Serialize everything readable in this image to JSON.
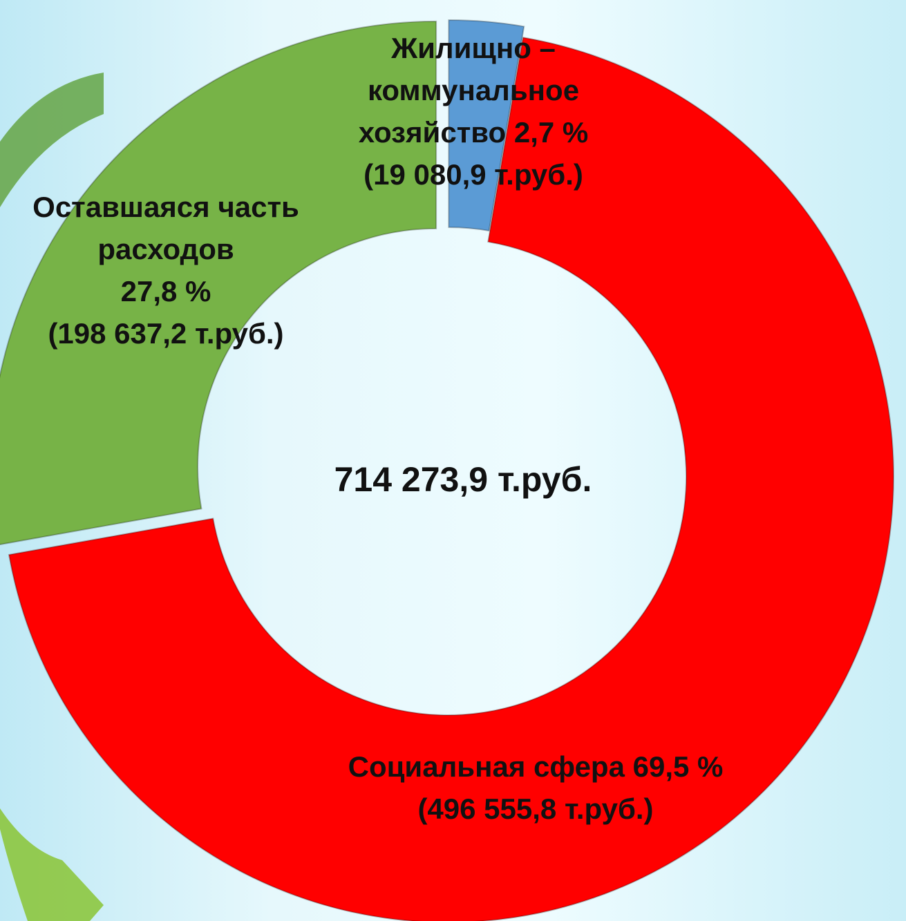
{
  "chart_data": {
    "type": "donut",
    "categories": [
      "Жилищно – коммунальное хозяйство",
      "Социальная сфера",
      "Оставшаяся часть расходов"
    ],
    "values": [
      2.7,
      69.5,
      27.8
    ],
    "value_labels": [
      "2,7 %",
      "69,5 %",
      "27,8 %"
    ],
    "colors": [
      "#5b9bd5",
      "#ff0000",
      "#77b347"
    ],
    "amounts": [
      19080.9,
      496555.8,
      198637.2
    ],
    "amount_labels": [
      "(19 080,9 т.руб.)",
      "(496 555,8 т.руб.)",
      "(198 637,2 т.руб.)"
    ],
    "total": 714273.9,
    "total_label": "714 273,9 т.руб."
  }
}
